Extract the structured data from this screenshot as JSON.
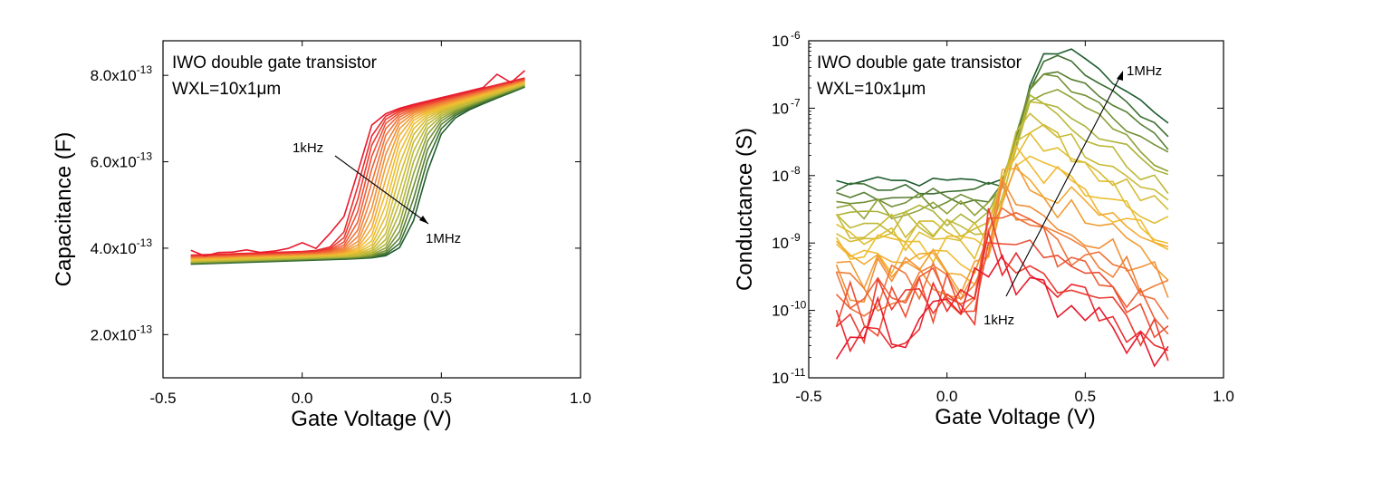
{
  "chart_data": [
    {
      "type": "line",
      "panel": "left",
      "title": "",
      "annotations": [
        "IWO double gate transistor",
        "WXL=10x1μm"
      ],
      "arrow_labels": {
        "start": "1kHz",
        "end": "1MHz"
      },
      "xlabel": "Gate Voltage (V)",
      "ylabel": "Capacitance (F)",
      "xlim": [
        -0.5,
        1.0
      ],
      "ylim": [
        1e-13,
        8.8e-13
      ],
      "yscale": "linear",
      "x_ticks": [
        "-0.5",
        "0.0",
        "0.5",
        "1.0"
      ],
      "y_ticks": [
        {
          "mant": "2.0x10",
          "exp": "-13",
          "value": 2e-13
        },
        {
          "mant": "4.0x10",
          "exp": "-13",
          "value": 4e-13
        },
        {
          "mant": "6.0x10",
          "exp": "-13",
          "value": 6e-13
        },
        {
          "mant": "8.0x10",
          "exp": "-13",
          "value": 8e-13
        }
      ],
      "x": [
        -0.4,
        -0.35,
        -0.3,
        -0.25,
        -0.2,
        -0.15,
        -0.1,
        -0.05,
        0.0,
        0.05,
        0.1,
        0.15,
        0.2,
        0.25,
        0.3,
        0.35,
        0.4,
        0.45,
        0.5,
        0.55,
        0.6,
        0.65,
        0.7,
        0.75,
        0.8
      ],
      "series_model": {
        "count": 22,
        "color_ramp": [
          "#e8192c",
          "#f0763a",
          "#f2c030",
          "#b4b83a",
          "#1e5c2e"
        ],
        "low_start": 3.85e-13,
        "low_end": 4.1e-13,
        "high_start": 7e-13,
        "high_end": 7.95e-13,
        "midpoint_first": 0.19,
        "midpoint_last": 0.43,
        "slope_first": 0.028,
        "slope_last": 0.032,
        "first_curve_noise": [
          1e-14,
          -4e-15,
          3e-15,
          3e-15,
          7e-15,
          0,
          2e-15,
          7e-15,
          1.9e-14,
          3e-15,
          2.7e-14,
          1.8e-14,
          0,
          8e-15,
          0,
          0,
          0,
          0,
          0,
          0,
          0,
          0,
          2.3e-14,
          -4e-15,
          1.6e-14
        ]
      }
    },
    {
      "type": "line",
      "panel": "right",
      "title": "",
      "annotations": [
        "IWO double gate transistor",
        "WXL=10x1μm"
      ],
      "arrow_labels": {
        "start": "1kHz",
        "end": "1MHz"
      },
      "xlabel": "Gate Voltage (V)",
      "ylabel": "Conductance (S)",
      "xlim": [
        -0.5,
        1.0
      ],
      "ylim_log10": [
        -11,
        -6
      ],
      "yscale": "log",
      "x_ticks": [
        "-0.5",
        "0.0",
        "0.5",
        "1.0"
      ],
      "y_ticks": [
        {
          "mant": "10",
          "exp": "-11",
          "value_log10": -11
        },
        {
          "mant": "10",
          "exp": "-10",
          "value_log10": -10
        },
        {
          "mant": "10",
          "exp": "-9",
          "value_log10": -9
        },
        {
          "mant": "10",
          "exp": "-8",
          "value_log10": -8
        },
        {
          "mant": "10",
          "exp": "-7",
          "value_log10": -7
        },
        {
          "mant": "10",
          "exp": "-6",
          "value_log10": -6
        }
      ],
      "x": [
        -0.4,
        -0.35,
        -0.3,
        -0.25,
        -0.2,
        -0.15,
        -0.1,
        -0.05,
        0.0,
        0.05,
        0.1,
        0.15,
        0.2,
        0.25,
        0.3,
        0.35,
        0.4,
        0.45,
        0.5,
        0.55,
        0.6,
        0.65,
        0.7,
        0.75,
        0.8
      ],
      "series_model": {
        "count": 22,
        "color_ramp": [
          "#e8192c",
          "#f0763a",
          "#f2c030",
          "#b4b83a",
          "#1e5c2e"
        ],
        "flat_first_log10": -10.2,
        "flat_last_log10": -8.1,
        "peak_first_log10": -9.2,
        "peak_last_log10": -6.15,
        "peak_x_first": 0.12,
        "peak_x_last": 0.45,
        "tail_first_log10": -10.8,
        "tail_last_log10": -7.2,
        "rise_line_log10": [
          -10.6,
          -9.4,
          -8.3,
          -7.3,
          -6.2
        ],
        "rise_line_x": [
          0.05,
          0.12,
          0.19,
          0.26,
          0.33
        ],
        "noise_amplitude_first": 0.55,
        "noise_amplitude_last": 0.08
      }
    }
  ]
}
